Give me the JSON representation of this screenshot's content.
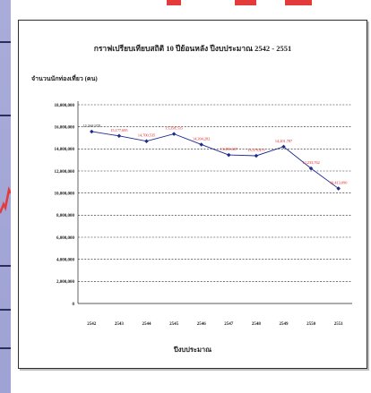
{
  "chart_data": {
    "type": "line",
    "title": "กราฟเปรียบเทียบสถิติ 10 ปีย้อนหลัง ปีงบประมาณ 2542 - 2551",
    "ylabel": "จำนวนนักท่องเที่ยว (คน)",
    "xlabel": "ปีงบประมาณ",
    "categories": [
      "2542",
      "2543",
      "2544",
      "2545",
      "2546",
      "2547",
      "2548",
      "2549",
      "2550",
      "2551"
    ],
    "series": [
      {
        "values": [
          15568978,
          15177695,
          14700535,
          15358535,
          14394282,
          13450607,
          13379475,
          14201787,
          12233762,
          10413090
        ],
        "labels": [
          "15,568,978",
          "15,177,695",
          "14,700,535",
          "15,358,535",
          "14,394,282",
          "13,450,607",
          "13,379,475",
          "14,201,787",
          "12,233,762",
          "10,413,090"
        ],
        "color": "#1f2a8c"
      }
    ],
    "ylim": [
      0,
      18000000
    ],
    "y_ticks": [
      "0",
      "2,000,000",
      "4,000,000",
      "6,000,000",
      "8,000,000",
      "10,000,000",
      "12,000,000",
      "14,000,000",
      "16,000,000",
      "18,000,000"
    ],
    "grid": "horizontal-dashed",
    "label_color": "#e02020"
  },
  "colors": {
    "strip": "#a9acd8",
    "accent_red": "#e33b3b"
  }
}
